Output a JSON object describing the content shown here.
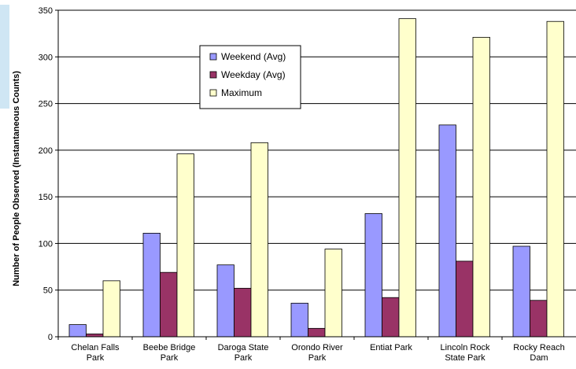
{
  "chart_data": {
    "type": "bar",
    "title": "",
    "xlabel": "",
    "ylabel": "Number of People Observed (Instantaneous Counts)",
    "ylim": [
      0,
      350
    ],
    "yticks": [
      0,
      50,
      100,
      150,
      200,
      250,
      300,
      350
    ],
    "grid": true,
    "legend_position": "top-center",
    "categories": [
      [
        "Chelan Falls",
        "Park"
      ],
      [
        "Beebe Bridge",
        "Park"
      ],
      [
        "Daroga State",
        "Park"
      ],
      [
        "Orondo River",
        "Park"
      ],
      [
        "Entiat Park"
      ],
      [
        "Lincoln Rock",
        "State Park"
      ],
      [
        "Rocky Reach",
        "Dam"
      ]
    ],
    "series": [
      {
        "name": "Weekend (Avg)",
        "color": "#9999ff",
        "values": [
          13,
          111,
          77,
          36,
          132,
          227,
          97
        ]
      },
      {
        "name": "Weekday (Avg)",
        "color": "#993366",
        "values": [
          3,
          69,
          52,
          9,
          42,
          81,
          39
        ]
      },
      {
        "name": "Maximum",
        "color": "#ffffcc",
        "values": [
          60,
          196,
          208,
          94,
          341,
          321,
          338
        ]
      }
    ]
  }
}
